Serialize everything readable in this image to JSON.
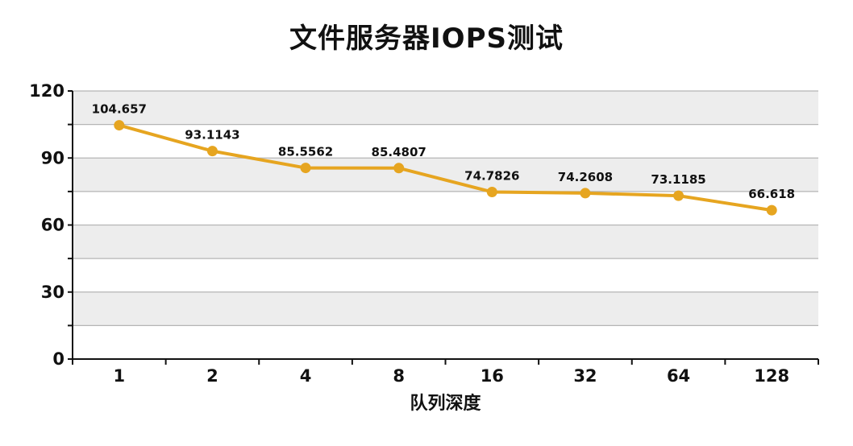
{
  "chart_data": {
    "type": "line",
    "title": "文件服务器IOPS测试",
    "xlabel": "队列深度",
    "ylabel": "",
    "categories": [
      "1",
      "2",
      "4",
      "8",
      "16",
      "32",
      "64",
      "128"
    ],
    "series": [
      {
        "values": [
          104.657,
          93.1143,
          85.5562,
          85.4807,
          74.7826,
          74.2608,
          73.1185,
          66.618
        ],
        "labels": [
          "104.657",
          "93.1143",
          "85.5562",
          "85.4807",
          "74.7826",
          "74.2608",
          "73.1185",
          "66.618"
        ]
      }
    ],
    "ylim": [
      0,
      120
    ],
    "yticks": [
      0,
      30,
      60,
      90,
      120
    ],
    "grid": true,
    "legend": "none",
    "colors": {
      "line": "#E6A520",
      "marker": "#E6A520",
      "band_shaded": "#EDEDED",
      "band_plain": "#FFFFFF",
      "gridline": "#B5B5B5",
      "axis": "#111111"
    }
  }
}
